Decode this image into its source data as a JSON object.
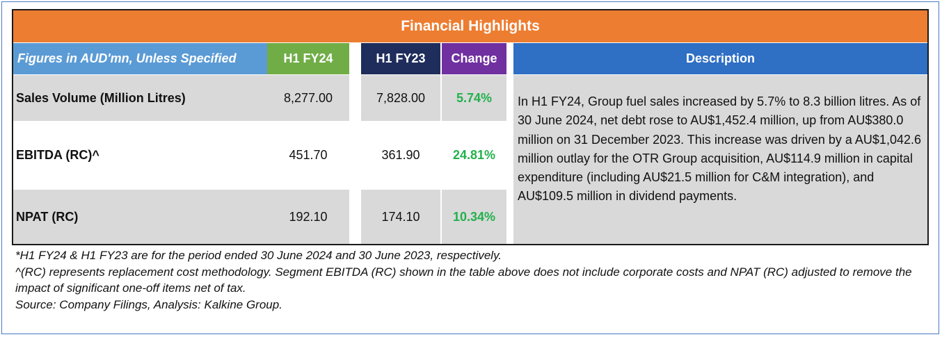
{
  "title": "Financial Highlights",
  "headers": {
    "figures": "Figures in AUD'mn, Unless Specified",
    "h1_fy24": "H1 FY24",
    "h1_fy23": "H1 FY23",
    "change": "Change",
    "description": "Description"
  },
  "rows": [
    {
      "label": "Sales Volume (Million Litres)",
      "h1_fy24": "8,277.00",
      "h1_fy23": "7,828.00",
      "change": "5.74%"
    },
    {
      "label": "EBITDA (RC)^",
      "h1_fy24": "451.70",
      "h1_fy23": "361.90",
      "change": "24.81%"
    },
    {
      "label": "NPAT (RC)",
      "h1_fy24": "192.10",
      "h1_fy23": "174.10",
      "change": "10.34%"
    }
  ],
  "description": "In H1 FY24, Group fuel sales increased by 5.7% to 8.3 billion litres. As of 30 June 2024, net debt rose to AU$1,452.4 million, up from AU$380.0 million on 31 December 2023. This increase was driven by a AU$1,042.6 million outlay for the OTR Group acquisition, AU$114.9 million in capital expenditure (including AU$21.5 million for C&M integration), and AU$109.5 million in dividend payments.",
  "notes": [
    "*H1 FY24 & H1 FY23 are for the period ended 30 June 2024 and 30 June 2023, respectively.",
    "^(RC) represents replacement cost methodology. Segment EBITDA (RC) shown in the table above does not include corporate costs and NPAT (RC) adjusted to remove the impact of significant one-off items net of tax.",
    "Source: Company Filings, Analysis: Kalkine Group."
  ],
  "colors": {
    "title_bg": "#ed7d31",
    "figures_bg": "#5b9bd5",
    "h1_fy24_bg": "#70ad47",
    "h1_fy23_bg": "#1f2d5c",
    "change_bg": "#7030a0",
    "description_bg": "#2f6fc4",
    "change_text": "#22b14c",
    "row_shade": "#d9d9d9"
  }
}
